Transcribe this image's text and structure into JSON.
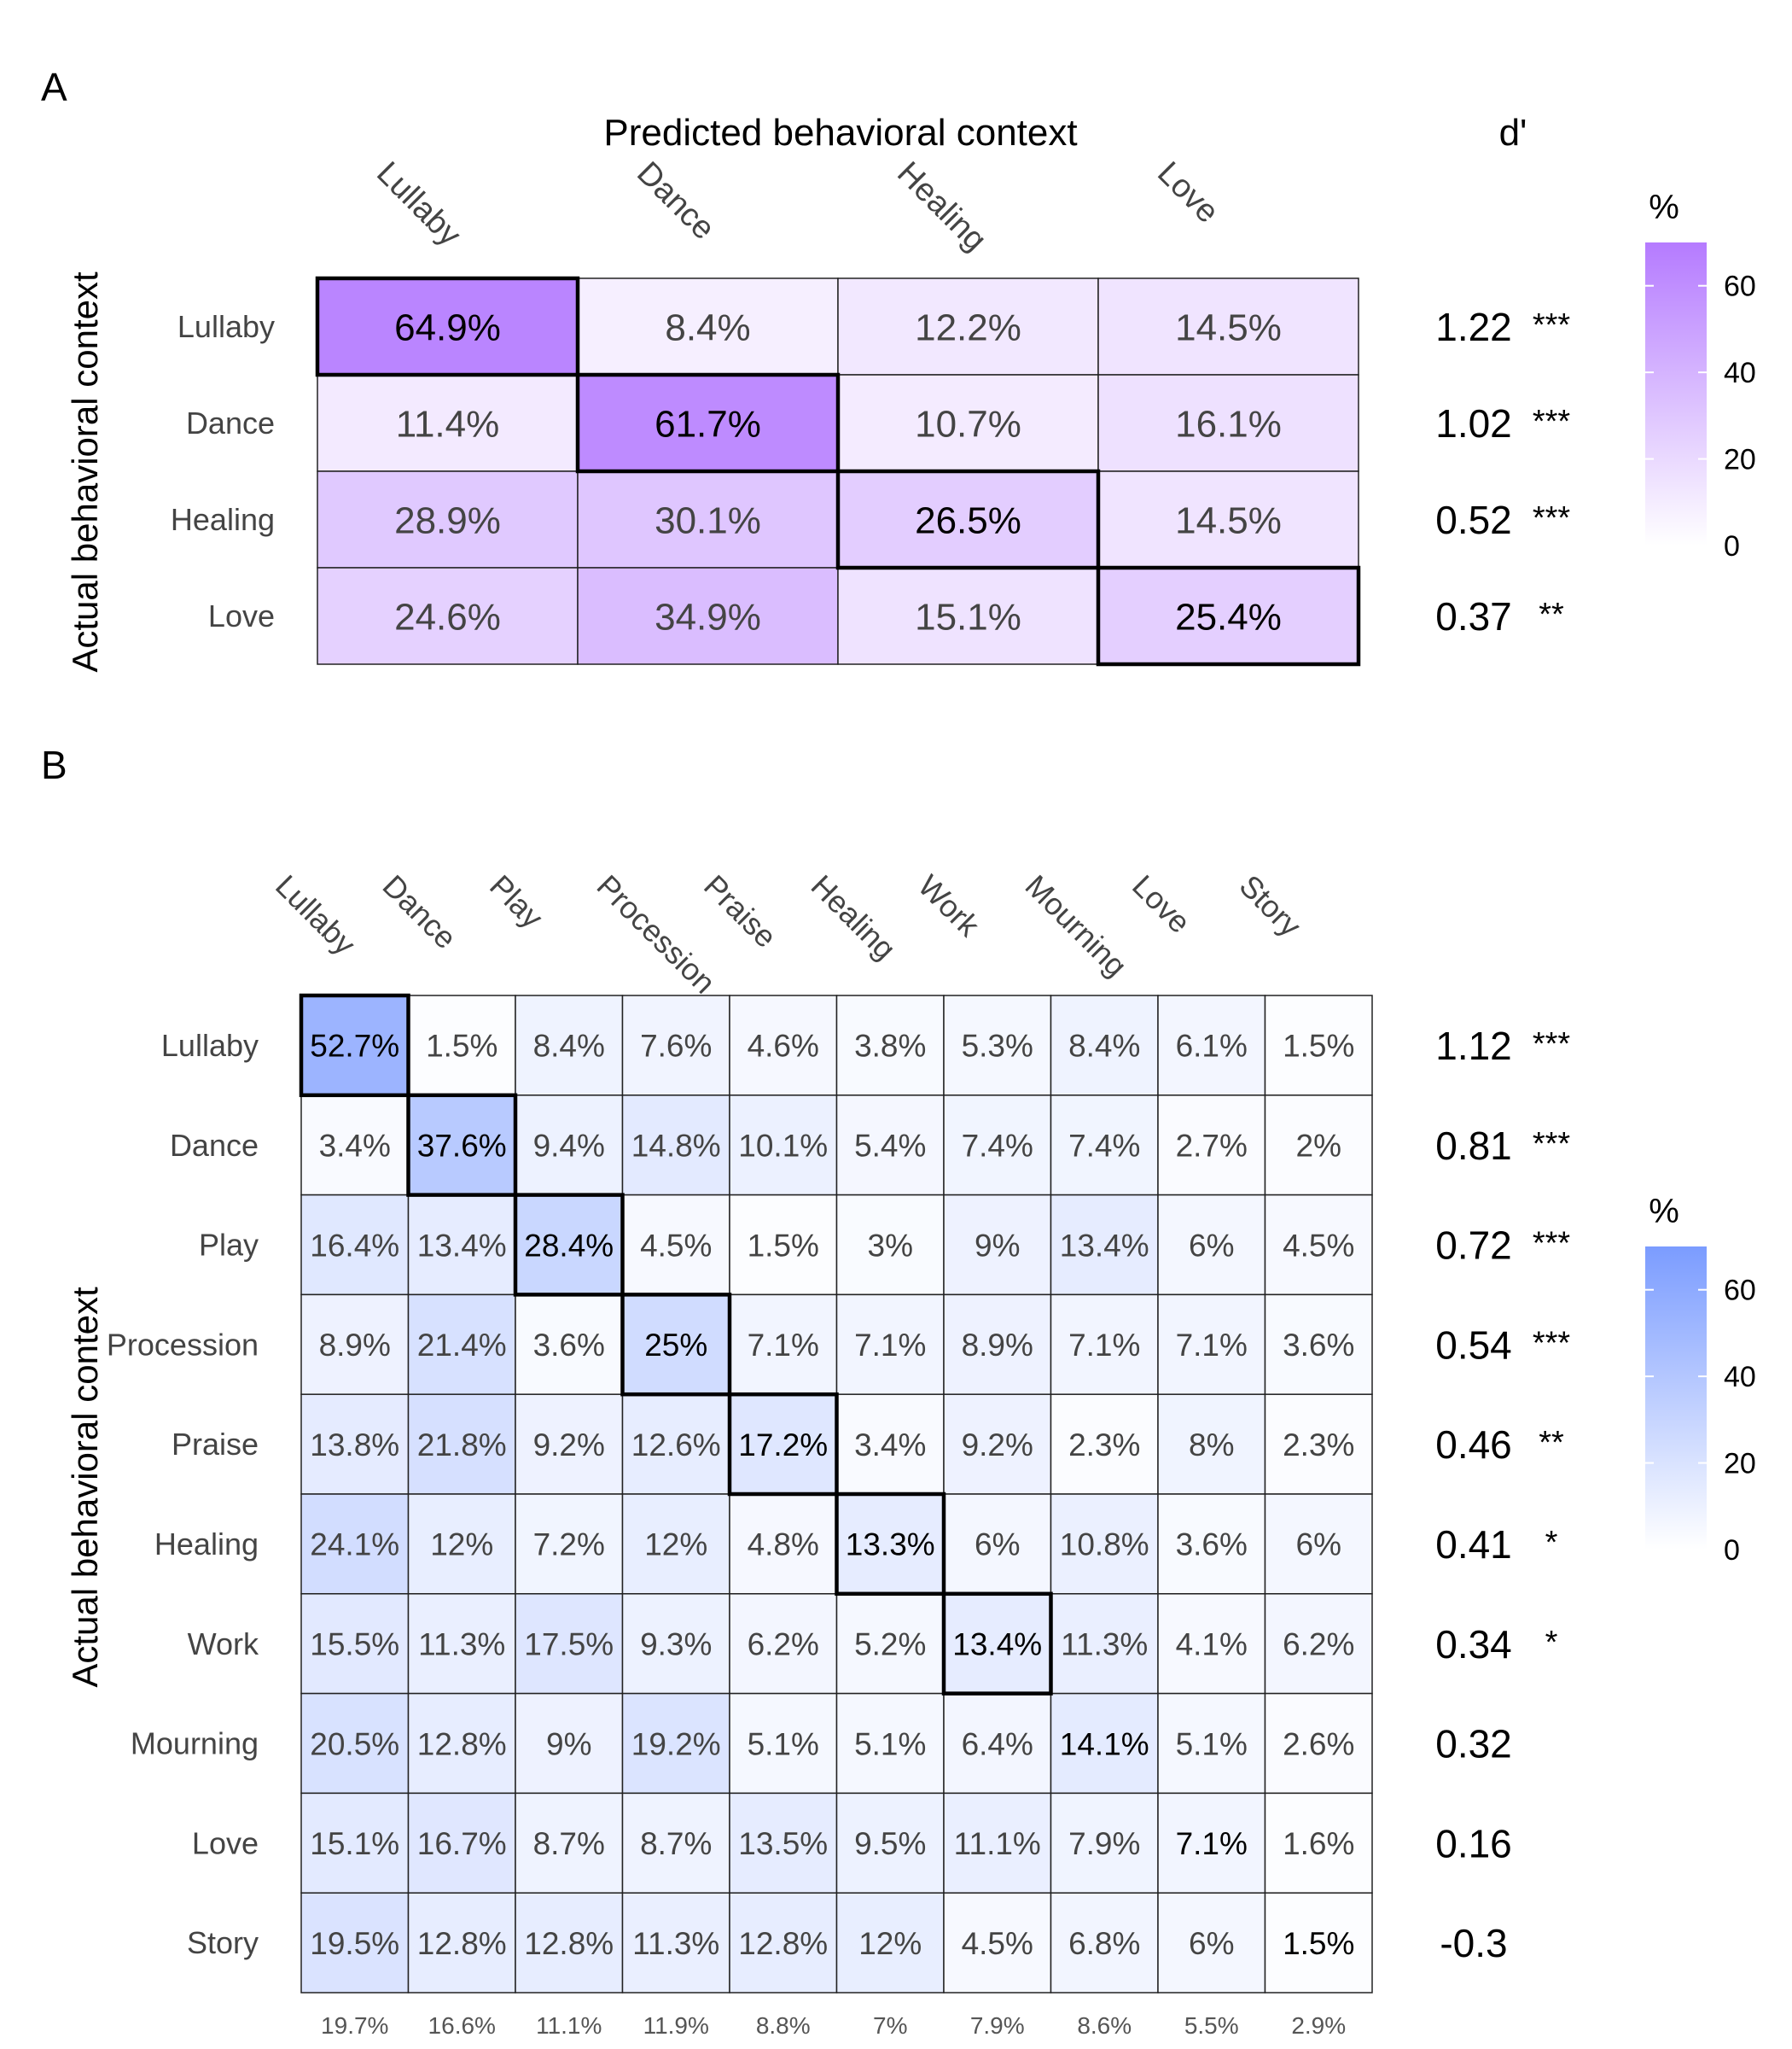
{
  "chart_data": [
    {
      "type": "heatmap",
      "panel_label": "A",
      "title": "Predicted behavioral context",
      "xlabel": "Predicted behavioral context",
      "ylabel": "Actual behavioral context",
      "columns": [
        "Lullaby",
        "Dance",
        "Healing",
        "Love"
      ],
      "rows": [
        "Lullaby",
        "Dance",
        "Healing",
        "Love"
      ],
      "values": [
        [
          64.9,
          8.4,
          12.2,
          14.5
        ],
        [
          11.4,
          61.7,
          10.7,
          16.1
        ],
        [
          28.9,
          30.1,
          26.5,
          14.5
        ],
        [
          24.6,
          34.9,
          15.1,
          25.4
        ]
      ],
      "cell_labels": [
        [
          "64.9%",
          "8.4%",
          "12.2%",
          "14.5%"
        ],
        [
          "11.4%",
          "61.7%",
          "10.7%",
          "16.1%"
        ],
        [
          "28.9%",
          "30.1%",
          "26.5%",
          "14.5%"
        ],
        [
          "24.6%",
          "34.9%",
          "15.1%",
          "25.4%"
        ]
      ],
      "dprime_header": "d'",
      "dprime": [
        {
          "value": "1.22",
          "sig": "***"
        },
        {
          "value": "1.02",
          "sig": "***"
        },
        {
          "value": "0.52",
          "sig": "***"
        },
        {
          "value": "0.37",
          "sig": "**"
        }
      ],
      "colorbar": {
        "title": "%",
        "ticks": [
          "0",
          "20",
          "40",
          "60"
        ],
        "range": [
          0,
          70
        ],
        "color": "#b57bff"
      },
      "diagonal_outlined": true
    },
    {
      "type": "heatmap",
      "panel_label": "B",
      "ylabel": "Actual behavioral context",
      "columns": [
        "Lullaby",
        "Dance",
        "Play",
        "Procession",
        "Praise",
        "Healing",
        "Work",
        "Mourning",
        "Love",
        "Story"
      ],
      "rows": [
        "Lullaby",
        "Dance",
        "Play",
        "Procession",
        "Praise",
        "Healing",
        "Work",
        "Mourning",
        "Love",
        "Story"
      ],
      "values": [
        [
          52.7,
          1.5,
          8.4,
          7.6,
          4.6,
          3.8,
          5.3,
          8.4,
          6.1,
          1.5
        ],
        [
          3.4,
          37.6,
          9.4,
          14.8,
          10.1,
          5.4,
          7.4,
          7.4,
          2.7,
          2
        ],
        [
          16.4,
          13.4,
          28.4,
          4.5,
          1.5,
          3,
          9,
          13.4,
          6,
          4.5
        ],
        [
          8.9,
          21.4,
          3.6,
          25,
          7.1,
          7.1,
          8.9,
          7.1,
          7.1,
          3.6
        ],
        [
          13.8,
          21.8,
          9.2,
          12.6,
          17.2,
          3.4,
          9.2,
          2.3,
          8,
          2.3
        ],
        [
          24.1,
          12,
          7.2,
          12,
          4.8,
          13.3,
          6,
          10.8,
          3.6,
          6
        ],
        [
          15.5,
          11.3,
          17.5,
          9.3,
          6.2,
          5.2,
          13.4,
          11.3,
          4.1,
          6.2
        ],
        [
          20.5,
          12.8,
          9,
          19.2,
          5.1,
          5.1,
          6.4,
          14.1,
          5.1,
          2.6
        ],
        [
          15.1,
          16.7,
          8.7,
          8.7,
          13.5,
          9.5,
          11.1,
          7.9,
          7.1,
          1.6
        ],
        [
          19.5,
          12.8,
          12.8,
          11.3,
          12.8,
          12,
          4.5,
          6.8,
          6,
          1.5
        ]
      ],
      "cell_labels": [
        [
          "52.7%",
          "1.5%",
          "8.4%",
          "7.6%",
          "4.6%",
          "3.8%",
          "5.3%",
          "8.4%",
          "6.1%",
          "1.5%"
        ],
        [
          "3.4%",
          "37.6%",
          "9.4%",
          "14.8%",
          "10.1%",
          "5.4%",
          "7.4%",
          "7.4%",
          "2.7%",
          "2%"
        ],
        [
          "16.4%",
          "13.4%",
          "28.4%",
          "4.5%",
          "1.5%",
          "3%",
          "9%",
          "13.4%",
          "6%",
          "4.5%"
        ],
        [
          "8.9%",
          "21.4%",
          "3.6%",
          "25%",
          "7.1%",
          "7.1%",
          "8.9%",
          "7.1%",
          "7.1%",
          "3.6%"
        ],
        [
          "13.8%",
          "21.8%",
          "9.2%",
          "12.6%",
          "17.2%",
          "3.4%",
          "9.2%",
          "2.3%",
          "8%",
          "2.3%"
        ],
        [
          "24.1%",
          "12%",
          "7.2%",
          "12%",
          "4.8%",
          "13.3%",
          "6%",
          "10.8%",
          "3.6%",
          "6%"
        ],
        [
          "15.5%",
          "11.3%",
          "17.5%",
          "9.3%",
          "6.2%",
          "5.2%",
          "13.4%",
          "11.3%",
          "4.1%",
          "6.2%"
        ],
        [
          "20.5%",
          "12.8%",
          "9%",
          "19.2%",
          "5.1%",
          "5.1%",
          "6.4%",
          "14.1%",
          "5.1%",
          "2.6%"
        ],
        [
          "15.1%",
          "16.7%",
          "8.7%",
          "8.7%",
          "13.5%",
          "9.5%",
          "11.1%",
          "7.9%",
          "7.1%",
          "1.6%"
        ],
        [
          "19.5%",
          "12.8%",
          "12.8%",
          "11.3%",
          "12.8%",
          "12%",
          "4.5%",
          "6.8%",
          "6%",
          "1.5%"
        ]
      ],
      "dprime": [
        {
          "value": "1.12",
          "sig": "***"
        },
        {
          "value": "0.81",
          "sig": "***"
        },
        {
          "value": "0.72",
          "sig": "***"
        },
        {
          "value": "0.54",
          "sig": "***"
        },
        {
          "value": "0.46",
          "sig": "**"
        },
        {
          "value": "0.41",
          "sig": "*"
        },
        {
          "value": "0.34",
          "sig": "*"
        },
        {
          "value": "0.32",
          "sig": ""
        },
        {
          "value": "0.16",
          "sig": ""
        },
        {
          "value": "-0.3",
          "sig": ""
        }
      ],
      "column_totals": [
        "19.7%",
        "16.6%",
        "11.1%",
        "11.9%",
        "8.8%",
        "7%",
        "7.9%",
        "8.6%",
        "5.5%",
        "2.9%"
      ],
      "colorbar": {
        "title": "%",
        "ticks": [
          "0",
          "20",
          "40",
          "60"
        ],
        "range": [
          0,
          70
        ],
        "color": "#7b9cff"
      },
      "diagonal_outlined_rows": 7
    }
  ]
}
